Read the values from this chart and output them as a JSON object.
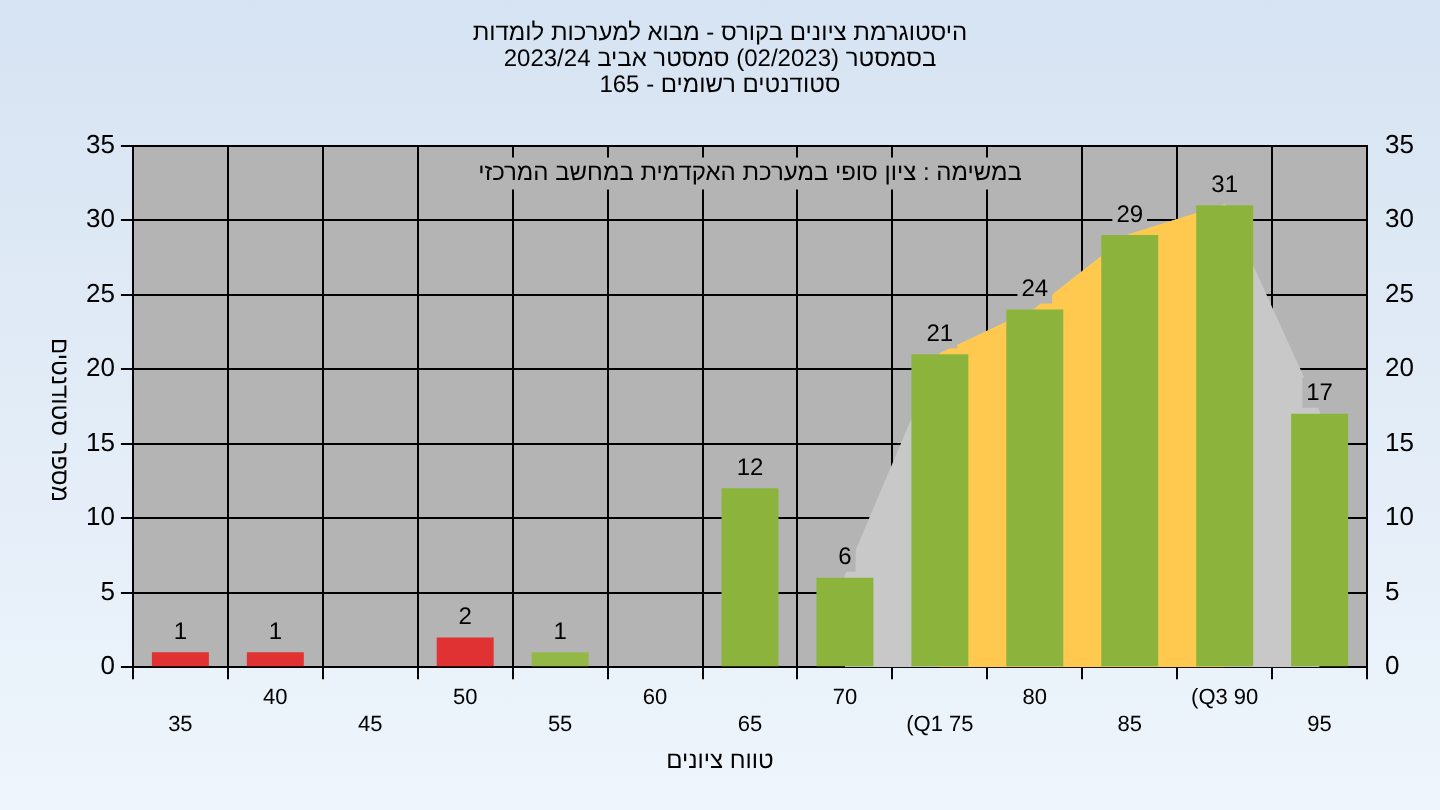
{
  "chart_data": {
    "type": "bar",
    "title": "היסטוגרמת ציונים בקורס - מבוא למערכות לומדות",
    "subtitle": "בסמסטר  (02/2023)  סמסטר אביב 2023/24\nסטודנטים רשומים - 165",
    "xlabel": "טווח ציונים",
    "ylabel": "מספר סטודנטים",
    "annotations": [
      "במשימה : ציון סופי במערכת האקדמית במחשב המרכזי"
    ],
    "categories": [
      "35",
      "40",
      "45",
      "50",
      "55",
      "60",
      "65",
      "70",
      "(Q1 75",
      "80",
      "85",
      "(Q3 90",
      "95"
    ],
    "series": [
      {
        "type": "area",
        "color": "#c8c8c8",
        "values": [
          null,
          null,
          null,
          null,
          null,
          null,
          null,
          6,
          21,
          24,
          29,
          31,
          17
        ]
      },
      {
        "type": "area",
        "color": "#ffc94f",
        "values": [
          null,
          null,
          null,
          null,
          null,
          null,
          null,
          null,
          21,
          24,
          29,
          31,
          null
        ]
      },
      {
        "colors": [
          "#e03232",
          "#e03232",
          "#e03232",
          "#e03232",
          "#94b848",
          "#8cb43c",
          "#8cb43c",
          "#8cb43c",
          "#8cb43c",
          "#8cb43c",
          "#8cb43c",
          "#8cb43c",
          "#8cb43c"
        ],
        "values": [
          1,
          1,
          0,
          2,
          1,
          0,
          12,
          6,
          21,
          24,
          29,
          31,
          17
        ],
        "value_labels": [
          "1",
          "1",
          null,
          "2",
          "1",
          null,
          "12",
          "6",
          "21",
          "24",
          "29",
          "31",
          "17"
        ]
      }
    ],
    "ylim": [
      0,
      35
    ],
    "yticks": [
      0,
      5,
      10,
      15,
      20,
      25,
      30,
      35
    ],
    "y2lim": [
      0,
      35
    ],
    "y2ticks": [
      0,
      5,
      10,
      15,
      20,
      25,
      30,
      35
    ],
    "grid": true,
    "legend": false
  }
}
